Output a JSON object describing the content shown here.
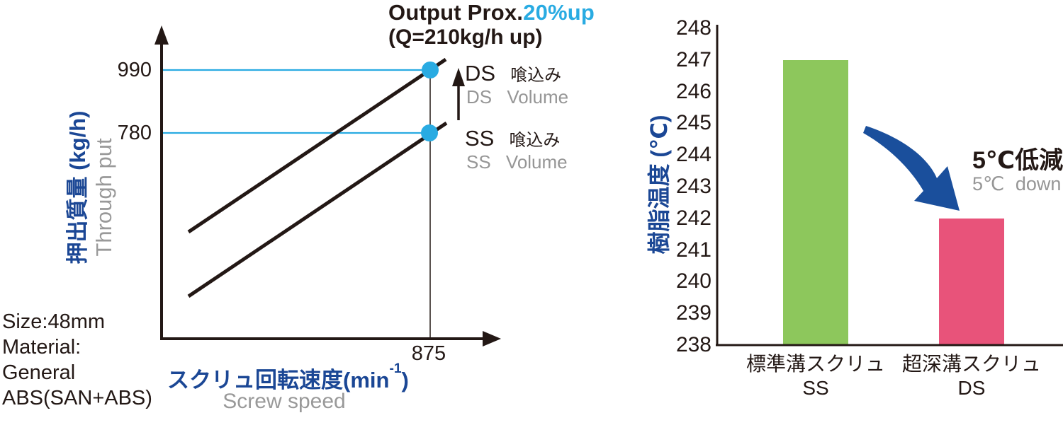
{
  "colors": {
    "ink": "#231815",
    "accent_cyan": "#29abe2",
    "label_blue": "#1b4795",
    "arrow_blue": "#1a4f9c",
    "subtitle_gray": "#969696",
    "bar_green": "#8dc75c",
    "bar_pink": "#e8537a"
  },
  "left_chart": {
    "title_black": "Output Prox.",
    "title_cyan": "20%up",
    "title_line2": "(Q=210kg/h up)",
    "ytick_990": "990",
    "ytick_780": "780",
    "xtick_875": "875",
    "ylabel_jp": "押出質量 (kg/h)",
    "ylabel_en": "Through put",
    "xlabel_jp_main": "スクリュ回転速度(min",
    "xlabel_sup": "-1",
    "xlabel_close": ")",
    "xlabel_en": "Screw speed",
    "legend": [
      {
        "code": "DS",
        "jp": "喰込み",
        "en": "DS Volume"
      },
      {
        "code": "SS",
        "jp": "喰込み",
        "en": "SS Volume"
      }
    ],
    "info_lines": [
      "Size:48mm",
      "Material:",
      "General",
      "ABS(SAN+ABS)"
    ]
  },
  "right_chart": {
    "ylabel_jp": "樹脂温度 (℃)",
    "annotation_jp": "5℃低減",
    "annotation_en": "5℃ down",
    "categories": [
      [
        "標準溝スクリュ",
        "SS"
      ],
      [
        "超深溝スクリュ",
        "DS"
      ]
    ]
  },
  "chart_data": [
    {
      "type": "line",
      "title": "Output Prox.20%up (Q=210kg/h up)",
      "xlabel": "スクリュ回転速度(min-1) / Screw speed",
      "ylabel": "押出質量(kg/h) / Through put",
      "x_ticks": [
        875
      ],
      "y_ticks": [
        780,
        990
      ],
      "series": [
        {
          "name": "DS 喰込み (DS Volume)",
          "highlight_point": {
            "x": 875,
            "y": 990
          }
        },
        {
          "name": "SS 喰込み (SS Volume)",
          "highlight_point": {
            "x": 875,
            "y": 780
          }
        }
      ],
      "annotations": [
        "Output Prox.20%up",
        "(Q=210kg/h up)"
      ],
      "notes": "Schematic: two parallel rising straight lines; at screw speed 875 min-1, SS screw gives 780 kg/h and DS screw gives 990 kg/h (+210 kg/h, approx. 20% up). Cyan guide lines mark 990 and 780; vertical guide marks 875.",
      "conditions": [
        "Size:48mm",
        "Material: General ABS(SAN+ABS)"
      ],
      "grid": false,
      "legend_position": "right"
    },
    {
      "type": "bar",
      "categories": [
        "標準溝スクリュ SS",
        "超深溝スクリュ DS"
      ],
      "values": [
        247,
        242
      ],
      "title": "",
      "xlabel": "",
      "ylabel": "樹脂温度 (℃)",
      "ylim": [
        238,
        248
      ],
      "ytick_step": 1,
      "bar_colors": [
        "#8dc75c",
        "#e8537a"
      ],
      "annotation": "5℃低減 (5℃ down)",
      "grid": false,
      "legend_position": "none"
    }
  ]
}
